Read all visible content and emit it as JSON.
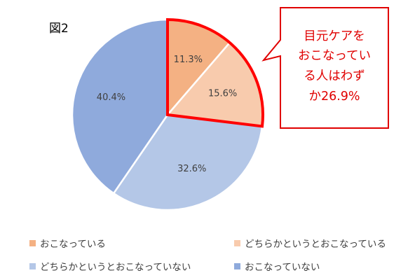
{
  "figure_label": "図2",
  "callout": {
    "lines": [
      "目元ケアを",
      "おこなってい",
      "る人はわず",
      "か26.9%"
    ],
    "color": "#e00000"
  },
  "colors": {
    "highlight_border": "#ff0000",
    "separator": "#ffffff"
  },
  "chart_data": {
    "type": "pie",
    "title": "",
    "start_angle_deg": 0,
    "direction": "clockwise",
    "slices": [
      {
        "label": "おこなっている",
        "value": 11.3,
        "display": "11.3%",
        "color": "#f4b183"
      },
      {
        "label": "どちらかというとおこなっている",
        "value": 15.6,
        "display": "15.6%",
        "color": "#f8cbad"
      },
      {
        "label": "どちらかというとおこなっていない",
        "value": 32.6,
        "display": "32.6%",
        "color": "#b4c7e7"
      },
      {
        "label": "おこなっていない",
        "value": 40.4,
        "display": "40.4%",
        "color": "#8faadc"
      }
    ],
    "highlighted_slices": [
      "おこなっている",
      "どちらかというとおこなっている"
    ],
    "legend_position": "bottom"
  }
}
